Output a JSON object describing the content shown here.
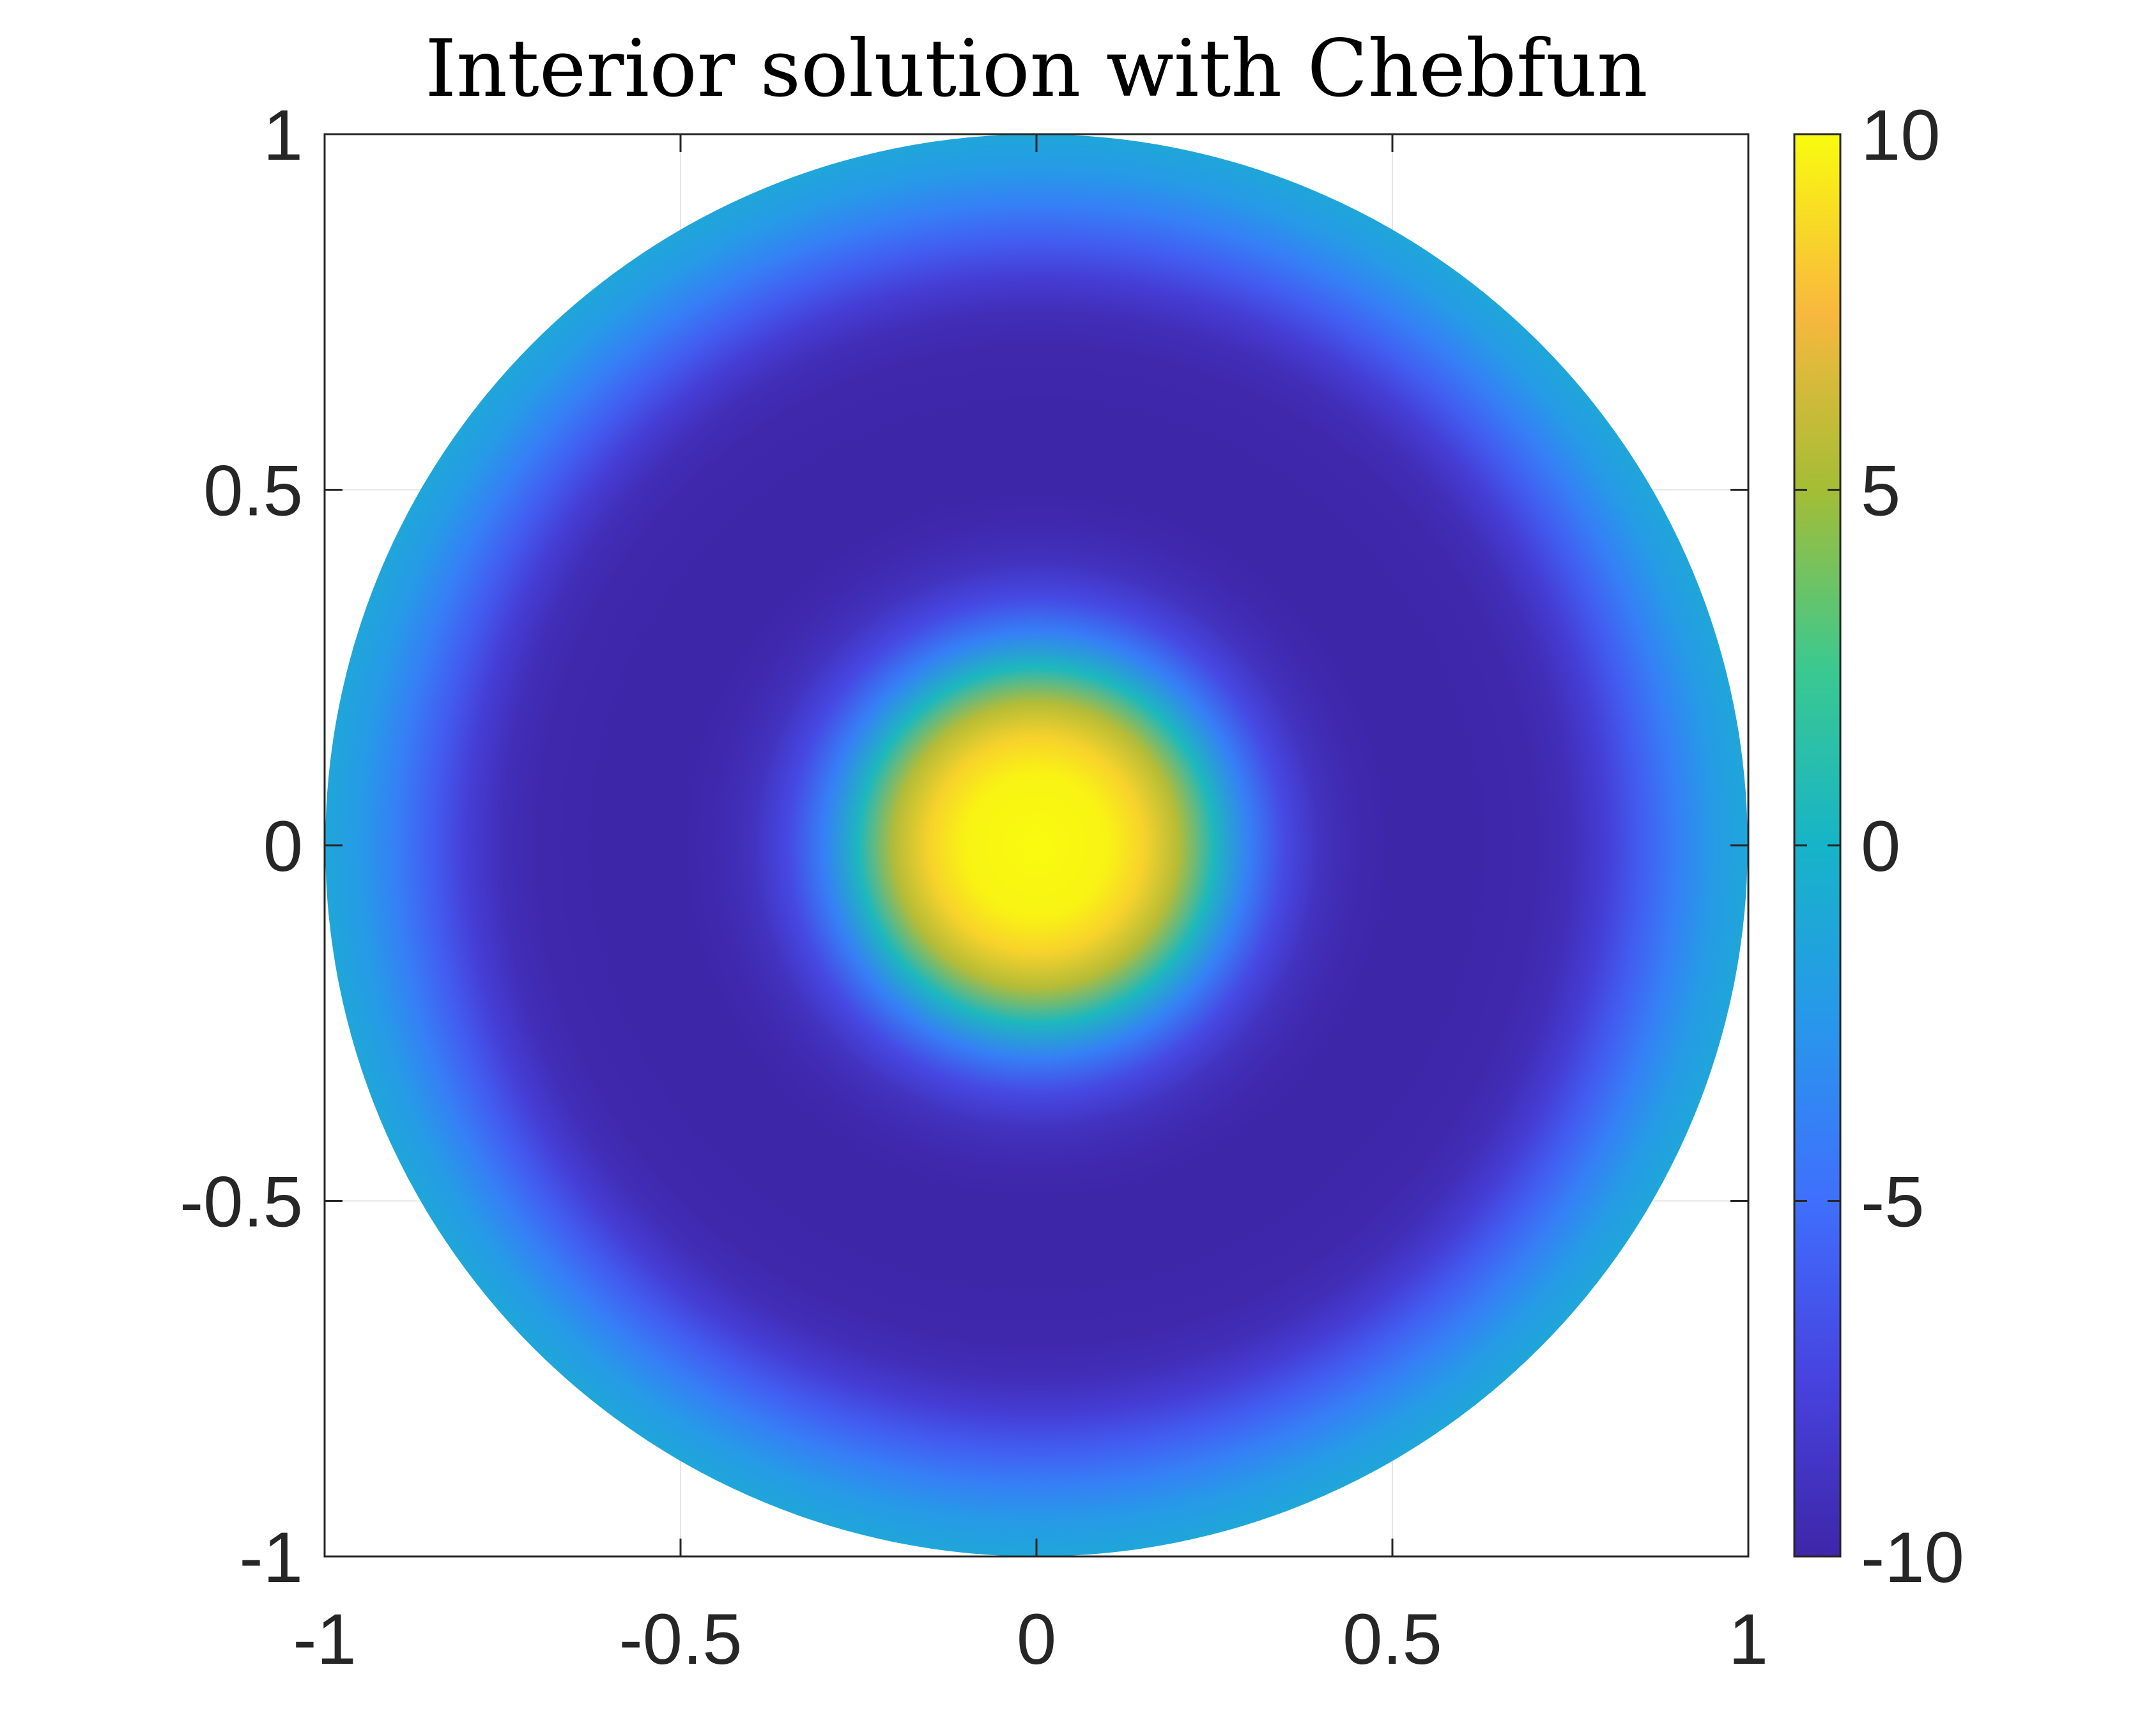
{
  "chart_data": {
    "type": "heatmap",
    "title": "Interior solution with Chebfun",
    "xlabel": "",
    "ylabel": "",
    "domain": "unit disk",
    "xlim": [
      -1,
      1
    ],
    "ylim": [
      -1,
      1
    ],
    "xticks": [
      -1,
      -0.5,
      0,
      0.5,
      1
    ],
    "xtick_labels": [
      "-1",
      "-0.5",
      "0",
      "0.5",
      "1"
    ],
    "yticks": [
      -1,
      -0.5,
      0,
      0.5,
      1
    ],
    "ytick_labels": [
      "-1",
      "-0.5",
      "0",
      "0.5",
      "1"
    ],
    "grid": true,
    "colormap": "parula",
    "clim": [
      -10,
      10
    ],
    "colorbar": {
      "position": "right",
      "ticks": [
        -10,
        -5,
        0,
        5,
        10
      ],
      "tick_labels": [
        "-10",
        "-5",
        "0",
        "5",
        "10"
      ]
    },
    "radial_profile": {
      "r": [
        0,
        0.1,
        0.15,
        0.2,
        0.25,
        0.3,
        0.35,
        0.4,
        0.45,
        0.5,
        0.6,
        0.7,
        0.75,
        0.8,
        0.85,
        0.9,
        0.95,
        1.0
      ],
      "value": [
        10,
        9.7,
        8.5,
        5.5,
        0.5,
        -4.0,
        -7.2,
        -9.0,
        -9.7,
        -10,
        -10,
        -9.8,
        -9.3,
        -8.0,
        -6.0,
        -4.0,
        -2.2,
        -1.2
      ]
    }
  },
  "parula_stops": [
    [
      0.0,
      "#3e26a8"
    ],
    [
      0.125,
      "#4743e0"
    ],
    [
      0.25,
      "#3f6ffd"
    ],
    [
      0.375,
      "#2897eb"
    ],
    [
      0.5,
      "#16b4c8"
    ],
    [
      0.625,
      "#3bc98f"
    ],
    [
      0.75,
      "#a4bd35"
    ],
    [
      0.875,
      "#f8b83e"
    ],
    [
      1.0,
      "#f9fb0e"
    ]
  ]
}
